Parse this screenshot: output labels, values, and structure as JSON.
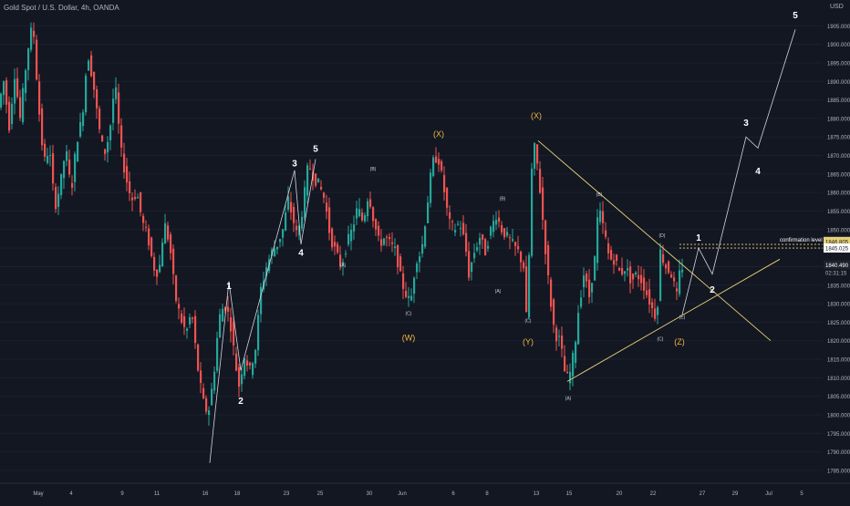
{
  "header": {
    "symbol": "Gold Spot / U.S. Dollar, 4h, OANDA",
    "unit": "USD"
  },
  "colors": {
    "background": "#131722",
    "up": "#26a69a",
    "down": "#ef5350",
    "wave_label": "#ffffff",
    "corrective_label": "#f0b840",
    "triangle_line": "#e6d27a"
  },
  "chart_data": {
    "type": "candlestick",
    "ylim": [
      1784,
      1910
    ],
    "y_ticks": [
      1785,
      1790,
      1795,
      1800,
      1805,
      1810,
      1815,
      1820,
      1825,
      1830,
      1835,
      1840,
      1845,
      1850,
      1855,
      1860,
      1865,
      1870,
      1875,
      1880,
      1885,
      1890,
      1895,
      1900,
      1905
    ],
    "y_tick_labels": [
      "1785.000",
      "1790.000",
      "1795.000",
      "1800.000",
      "1805.000",
      "1810.000",
      "1815.000",
      "1820.000",
      "1825.000",
      "1830.000",
      "1835.000",
      "1840.000",
      "1845.000",
      "1850.000",
      "1855.000",
      "1860.000",
      "1865.000",
      "1870.000",
      "1875.000",
      "1880.000",
      "1885.000",
      "1890.000",
      "1895.000",
      "1900.000",
      "1905.000"
    ],
    "x_tick_labels": [
      "May",
      "4",
      "9",
      "11",
      "16",
      "18",
      "23",
      "25",
      "30",
      "Jun",
      "6",
      "8",
      "13",
      "15",
      "20",
      "22",
      "27",
      "29",
      "Jul",
      "5"
    ],
    "last_price": "1840.490",
    "countdown": "02:31:15",
    "confirmation_price": "1846.805",
    "confirmation_label": "confirmation level 1846",
    "current_marker": "1845.025",
    "candle_anchors": [
      [
        0,
        1883
      ],
      [
        6,
        1890
      ],
      [
        12,
        1878
      ],
      [
        18,
        1892
      ],
      [
        24,
        1880
      ],
      [
        32,
        1898
      ],
      [
        38,
        1906
      ],
      [
        44,
        1884
      ],
      [
        50,
        1868
      ],
      [
        56,
        1872
      ],
      [
        62,
        1856
      ],
      [
        68,
        1862
      ],
      [
        74,
        1872
      ],
      [
        80,
        1860
      ],
      [
        86,
        1874
      ],
      [
        92,
        1880
      ],
      [
        98,
        1898
      ],
      [
        104,
        1890
      ],
      [
        110,
        1878
      ],
      [
        116,
        1870
      ],
      [
        122,
        1876
      ],
      [
        128,
        1890
      ],
      [
        134,
        1872
      ],
      [
        140,
        1864
      ],
      [
        146,
        1858
      ],
      [
        152,
        1860
      ],
      [
        158,
        1852
      ],
      [
        164,
        1848
      ],
      [
        170,
        1840
      ],
      [
        176,
        1838
      ],
      [
        182,
        1852
      ],
      [
        188,
        1846
      ],
      [
        194,
        1832
      ],
      [
        200,
        1826
      ],
      [
        206,
        1822
      ],
      [
        212,
        1828
      ],
      [
        218,
        1814
      ],
      [
        224,
        1804
      ],
      [
        230,
        1800
      ],
      [
        236,
        1810
      ],
      [
        242,
        1826
      ],
      [
        248,
        1830
      ],
      [
        254,
        1826
      ],
      [
        260,
        1814
      ],
      [
        264,
        1808
      ],
      [
        270,
        1816
      ],
      [
        276,
        1812
      ],
      [
        282,
        1818
      ],
      [
        288,
        1834
      ],
      [
        294,
        1840
      ],
      [
        300,
        1844
      ],
      [
        306,
        1846
      ],
      [
        312,
        1850
      ],
      [
        318,
        1858
      ],
      [
        322,
        1854
      ],
      [
        328,
        1848
      ],
      [
        334,
        1856
      ],
      [
        340,
        1868
      ],
      [
        346,
        1864
      ],
      [
        352,
        1862
      ],
      [
        358,
        1858
      ],
      [
        364,
        1848
      ],
      [
        370,
        1844
      ],
      [
        376,
        1840
      ],
      [
        382,
        1846
      ],
      [
        388,
        1850
      ],
      [
        394,
        1856
      ],
      [
        400,
        1852
      ],
      [
        406,
        1860
      ],
      [
        412,
        1852
      ],
      [
        418,
        1846
      ],
      [
        424,
        1848
      ],
      [
        430,
        1846
      ],
      [
        436,
        1844
      ],
      [
        442,
        1836
      ],
      [
        448,
        1832
      ],
      [
        452,
        1830
      ],
      [
        458,
        1842
      ],
      [
        464,
        1844
      ],
      [
        470,
        1856
      ],
      [
        476,
        1868
      ],
      [
        482,
        1870
      ],
      [
        488,
        1862
      ],
      [
        494,
        1852
      ],
      [
        500,
        1850
      ],
      [
        506,
        1852
      ],
      [
        512,
        1846
      ],
      [
        516,
        1838
      ],
      [
        522,
        1844
      ],
      [
        528,
        1848
      ],
      [
        534,
        1844
      ],
      [
        540,
        1850
      ],
      [
        546,
        1854
      ],
      [
        552,
        1850
      ],
      [
        558,
        1848
      ],
      [
        564,
        1846
      ],
      [
        570,
        1844
      ],
      [
        576,
        1840
      ],
      [
        580,
        1822
      ],
      [
        584,
        1864
      ],
      [
        588,
        1872
      ],
      [
        592,
        1866
      ],
      [
        598,
        1850
      ],
      [
        604,
        1834
      ],
      [
        610,
        1822
      ],
      [
        616,
        1820
      ],
      [
        622,
        1810
      ],
      [
        626,
        1810
      ],
      [
        632,
        1818
      ],
      [
        636,
        1828
      ],
      [
        642,
        1838
      ],
      [
        648,
        1832
      ],
      [
        654,
        1842
      ],
      [
        658,
        1856
      ],
      [
        664,
        1850
      ],
      [
        670,
        1842
      ],
      [
        676,
        1842
      ],
      [
        682,
        1838
      ],
      [
        688,
        1840
      ],
      [
        694,
        1836
      ],
      [
        700,
        1838
      ],
      [
        706,
        1836
      ],
      [
        712,
        1832
      ],
      [
        718,
        1828
      ],
      [
        722,
        1826
      ],
      [
        726,
        1844
      ],
      [
        732,
        1840
      ],
      [
        738,
        1838
      ],
      [
        744,
        1832
      ],
      [
        748,
        1840
      ]
    ],
    "wave_labels": [
      {
        "text": "1",
        "x": 251,
        "y": 1834,
        "color": "white"
      },
      {
        "text": "2",
        "x": 264,
        "y": 1803,
        "color": "white"
      },
      {
        "text": "3",
        "x": 323,
        "y": 1867,
        "color": "white"
      },
      {
        "text": "4",
        "x": 330,
        "y": 1843,
        "color": "white"
      },
      {
        "text": "5",
        "x": 346,
        "y": 1871,
        "color": "white"
      },
      {
        "text": "1",
        "x": 766,
        "y": 1847,
        "color": "white"
      },
      {
        "text": "2",
        "x": 781,
        "y": 1833,
        "color": "white"
      },
      {
        "text": "3",
        "x": 818,
        "y": 1878,
        "color": "white"
      },
      {
        "text": "4",
        "x": 831,
        "y": 1865,
        "color": "white"
      },
      {
        "text": "5",
        "x": 872,
        "y": 1907,
        "color": "white"
      },
      {
        "text": "(X)",
        "x": 481,
        "y": 1875,
        "color": "gold"
      },
      {
        "text": "(X)",
        "x": 588,
        "y": 1880,
        "color": "gold"
      },
      {
        "text": "(W)",
        "x": 448,
        "y": 1820,
        "color": "gold"
      },
      {
        "text": "(Y)",
        "x": 579,
        "y": 1819,
        "color": "gold"
      },
      {
        "text": "(Z)",
        "x": 745,
        "y": 1819,
        "color": "gold"
      },
      {
        "text": "(A)",
        "x": 376,
        "y": 1840,
        "color": "small"
      },
      {
        "text": "(B)",
        "x": 409,
        "y": 1866,
        "color": "small"
      },
      {
        "text": "(C)",
        "x": 448,
        "y": 1827,
        "color": "small"
      },
      {
        "text": "(A)",
        "x": 546,
        "y": 1833,
        "color": "small"
      },
      {
        "text": "(B)",
        "x": 551,
        "y": 1858,
        "color": "small"
      },
      {
        "text": "(C)",
        "x": 579,
        "y": 1825,
        "color": "small"
      },
      {
        "text": "(A)",
        "x": 623,
        "y": 1804,
        "color": "small"
      },
      {
        "text": "(B)",
        "x": 657,
        "y": 1859,
        "color": "small"
      },
      {
        "text": "(C)",
        "x": 724,
        "y": 1820,
        "color": "small"
      },
      {
        "text": "(D)",
        "x": 726,
        "y": 1848,
        "color": "small"
      },
      {
        "text": "(E)",
        "x": 748,
        "y": 1826,
        "color": "small"
      }
    ],
    "impulse_path": [
      [
        230,
        1787
      ],
      [
        251,
        1836
      ],
      [
        264,
        1812
      ],
      [
        323,
        1866
      ],
      [
        330,
        1846
      ],
      [
        346,
        1869
      ]
    ],
    "projection_path": [
      [
        748,
        1827
      ],
      [
        766,
        1845
      ],
      [
        781,
        1838
      ],
      [
        818,
        1875
      ],
      [
        831,
        1872
      ],
      [
        872,
        1904
      ]
    ],
    "triangle_lines": [
      [
        [
          590,
          1874
        ],
        [
          845,
          1820
        ]
      ],
      [
        [
          622,
          1809
        ],
        [
          855,
          1842
        ]
      ]
    ],
    "confirmation_line": [
      [
        745,
        1846
      ],
      [
        905,
        1846
      ]
    ]
  }
}
